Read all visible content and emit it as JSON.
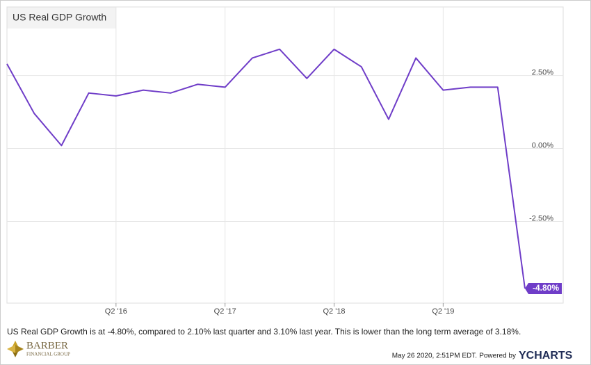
{
  "chart_data": {
    "type": "line",
    "title": "US Real GDP Growth",
    "categories": [
      null,
      null,
      null,
      null,
      "Q2 '16",
      null,
      null,
      null,
      "Q2 '17",
      null,
      null,
      null,
      "Q2 '18",
      null,
      null,
      null,
      "Q2 '19",
      null,
      null,
      null
    ],
    "series": [
      {
        "name": "US Real GDP Growth",
        "color": "#6f3dc8",
        "values": [
          2.9,
          1.2,
          0.1,
          1.9,
          1.8,
          2.0,
          1.9,
          2.2,
          2.1,
          3.1,
          3.4,
          2.4,
          3.4,
          2.8,
          1.0,
          3.1,
          2.0,
          2.1,
          2.1,
          -4.8
        ],
        "value_labels": [
          null,
          null,
          null,
          null,
          null,
          null,
          null,
          null,
          null,
          null,
          null,
          null,
          null,
          null,
          null,
          null,
          null,
          null,
          null,
          "-4.80%"
        ]
      }
    ],
    "ylim": [
      -5.3,
      4.85
    ],
    "yticks": [
      {
        "value": -2.5,
        "label": "-2.50%"
      },
      {
        "value": 0,
        "label": "0.00%"
      },
      {
        "value": 2.5,
        "label": "2.50%"
      }
    ],
    "grid": true,
    "description": "US Real GDP Growth is at -4.80%, compared to 2.10% last quarter and 3.10% last year. This is lower than the long term average of 3.18%.",
    "timestamp": "May 26 2020, 2:51PM EDT.",
    "powered_by": "Powered by",
    "brand": "YCHARTS",
    "logo": {
      "name": "BARBER",
      "subtitle": "FINANCIAL GROUP"
    }
  }
}
